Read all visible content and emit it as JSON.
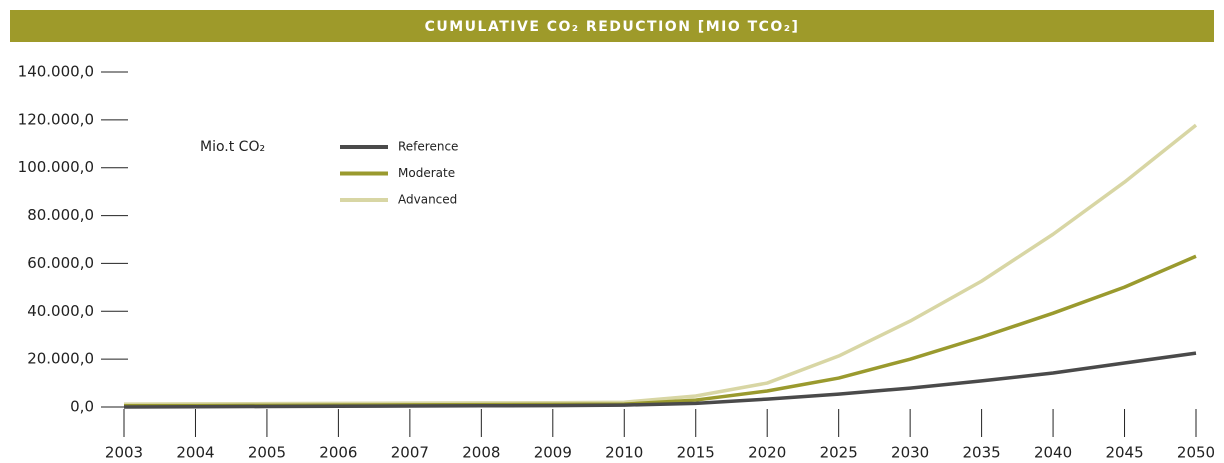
{
  "chart_data": {
    "type": "line",
    "title": "CUMULATIVE CO₂ REDUCTION  [MIO TCO₂]",
    "unit_label": "Mio.t CO₂",
    "categories": [
      "2003",
      "2004",
      "2005",
      "2006",
      "2007",
      "2008",
      "2009",
      "2010",
      "2015",
      "2020",
      "2025",
      "2030",
      "2035",
      "2040",
      "2045",
      "2050"
    ],
    "series": [
      {
        "name": "Reference",
        "color": "#4a4a4a",
        "values": [
          0,
          100,
          200,
          300,
          400,
          500,
          600,
          800,
          1500,
          3300,
          5400,
          7900,
          10900,
          14200,
          18400,
          22500
        ]
      },
      {
        "name": "Moderate",
        "color": "#9a9a2e",
        "values": [
          500,
          600,
          700,
          800,
          900,
          1000,
          1100,
          1200,
          2900,
          6700,
          12100,
          20000,
          29200,
          39200,
          50100,
          63000
        ]
      },
      {
        "name": "Advanced",
        "color": "#d8d6a4",
        "values": [
          1200,
          1300,
          1400,
          1500,
          1600,
          1700,
          1800,
          2000,
          4600,
          10000,
          21300,
          35900,
          52600,
          72200,
          94000,
          117800
        ]
      }
    ],
    "ylim": [
      0,
      140000
    ],
    "yticks": [
      {
        "value": 0,
        "label": "0,0"
      },
      {
        "value": 20000,
        "label": "20.000,0"
      },
      {
        "value": 40000,
        "label": "40.000,0"
      },
      {
        "value": 60000,
        "label": "60.000,0"
      },
      {
        "value": 80000,
        "label": "80.000,0"
      },
      {
        "value": 100000,
        "label": "100.000,0"
      },
      {
        "value": 120000,
        "label": "120.000,0"
      },
      {
        "value": 140000,
        "label": "140.000,0"
      }
    ]
  }
}
